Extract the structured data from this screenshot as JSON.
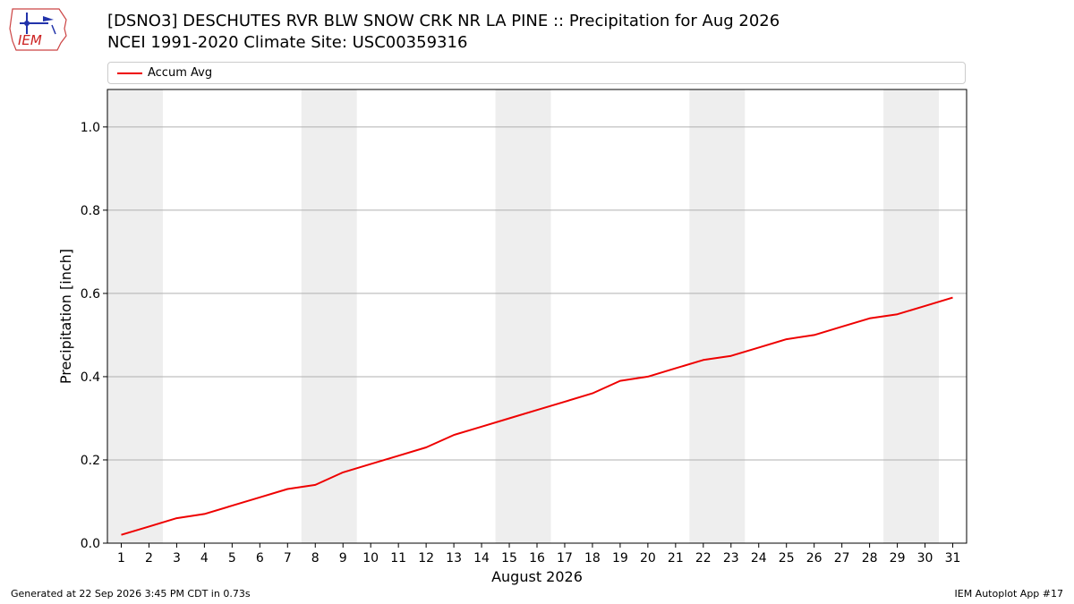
{
  "header": {
    "title_line1": "[DSNO3] DESCHUTES RVR BLW SNOW CRK NR LA PINE :: Precipitation for Aug 2026",
    "title_line2": "NCEI 1991-2020 Climate Site: USC00359316",
    "logo_text": "IEM"
  },
  "footer": {
    "generated": "Generated at 22 Sep 2026 3:45 PM CDT in 0.73s",
    "app": "IEM Autoplot App #17"
  },
  "colors": {
    "series": "#ee0000",
    "weekend_band": "#eeeeee",
    "grid": "#b0b0b0"
  },
  "chart_data": {
    "type": "line",
    "title": "[DSNO3] DESCHUTES RVR BLW SNOW CRK NR LA PINE :: Precipitation for Aug 2026",
    "subtitle": "NCEI 1991-2020 Climate Site: USC00359316",
    "xlabel": "August 2026",
    "ylabel": "Precipitation [inch]",
    "x": [
      1,
      2,
      3,
      4,
      5,
      6,
      7,
      8,
      9,
      10,
      11,
      12,
      13,
      14,
      15,
      16,
      17,
      18,
      19,
      20,
      21,
      22,
      23,
      24,
      25,
      26,
      27,
      28,
      29,
      30,
      31
    ],
    "xlim": [
      0.5,
      31.5
    ],
    "ylim": [
      0,
      1.09
    ],
    "yticks": [
      0.0,
      0.2,
      0.4,
      0.6,
      0.8,
      1.0
    ],
    "ytick_labels": [
      "0.0",
      "0.2",
      "0.4",
      "0.6",
      "0.8",
      "1.0"
    ],
    "xtick_labels": [
      "1",
      "2",
      "3",
      "4",
      "5",
      "6",
      "7",
      "8",
      "9",
      "10",
      "11",
      "12",
      "13",
      "14",
      "15",
      "16",
      "17",
      "18",
      "19",
      "20",
      "21",
      "22",
      "23",
      "24",
      "25",
      "26",
      "27",
      "28",
      "29",
      "30",
      "31"
    ],
    "grid": "horizontal",
    "legend_position": "top",
    "weekend_bands": [
      [
        0.5,
        2.5
      ],
      [
        7.5,
        9.5
      ],
      [
        14.5,
        16.5
      ],
      [
        21.5,
        23.5
      ],
      [
        28.5,
        30.5
      ]
    ],
    "series": [
      {
        "name": "Accum Avg",
        "color": "#ee0000",
        "values": [
          0.02,
          0.04,
          0.06,
          0.07,
          0.09,
          0.11,
          0.13,
          0.14,
          0.17,
          0.19,
          0.21,
          0.23,
          0.26,
          0.28,
          0.3,
          0.32,
          0.34,
          0.36,
          0.39,
          0.4,
          0.42,
          0.44,
          0.45,
          0.47,
          0.49,
          0.5,
          0.52,
          0.54,
          0.55,
          0.57,
          0.59
        ]
      }
    ]
  }
}
